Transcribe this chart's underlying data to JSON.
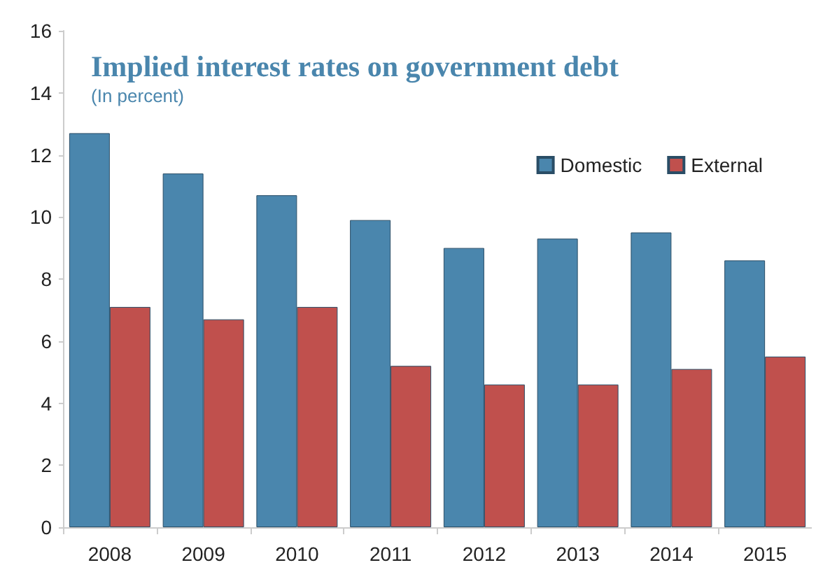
{
  "chart_data": {
    "type": "bar",
    "title": "Implied interest rates on government debt",
    "subtitle": "(In percent)",
    "categories": [
      "2008",
      "2009",
      "2010",
      "2011",
      "2012",
      "2013",
      "2014",
      "2015"
    ],
    "series": [
      {
        "name": "Domestic",
        "color": "#4a86ad",
        "values": [
          12.7,
          11.4,
          10.7,
          9.9,
          9.0,
          9.3,
          9.5,
          8.6
        ]
      },
      {
        "name": "External",
        "color": "#c0504d",
        "values": [
          7.1,
          6.7,
          7.1,
          5.2,
          4.6,
          4.6,
          5.1,
          5.5
        ]
      }
    ],
    "ylim": [
      0,
      16
    ],
    "yticks": [
      0,
      2,
      4,
      6,
      8,
      10,
      12,
      14,
      16
    ],
    "grid": false,
    "legend": "top right"
  }
}
